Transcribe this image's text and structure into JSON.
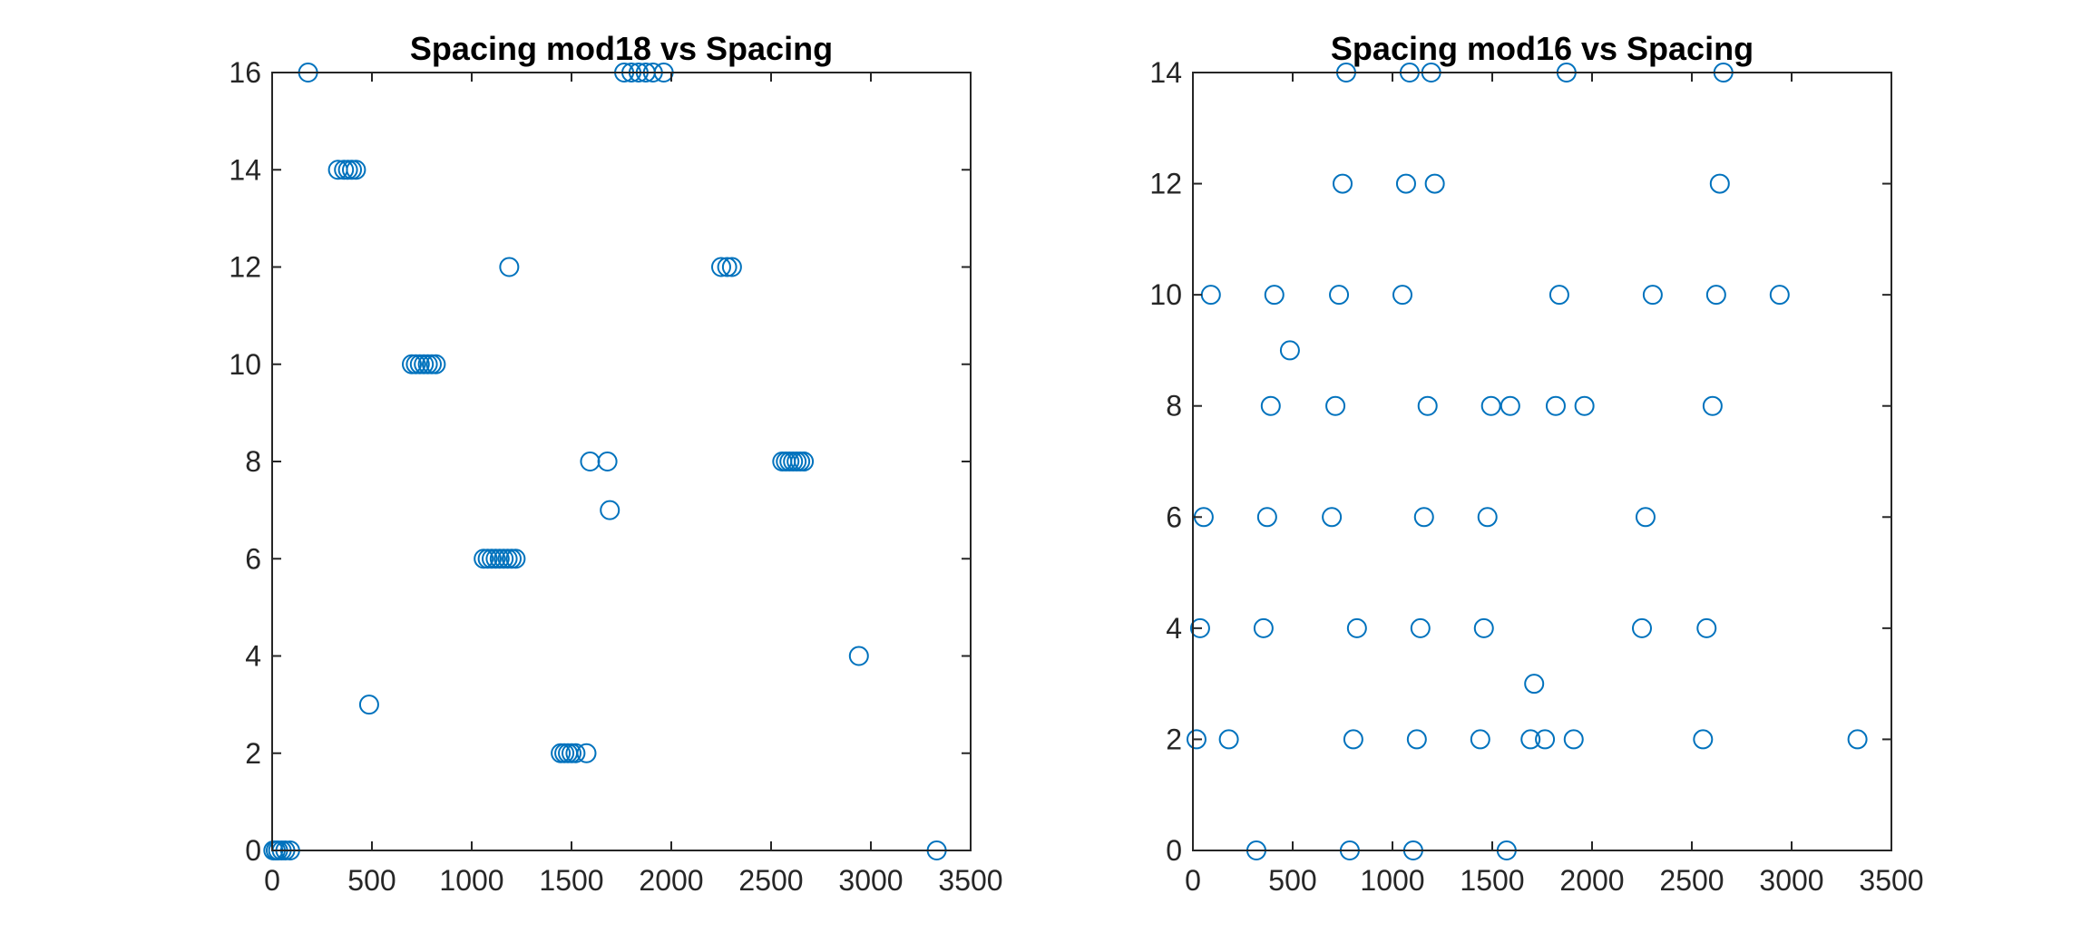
{
  "colors": {
    "marker": "#0072BD",
    "axis": "#262626",
    "title": "#000000",
    "background": "#ffffff"
  },
  "chart_data": [
    {
      "type": "scatter",
      "title": "Spacing mod18 vs Spacing",
      "xlabel": "",
      "ylabel": "",
      "xlim": [
        0,
        3500
      ],
      "ylim": [
        0,
        16
      ],
      "xticks": [
        0,
        500,
        1000,
        1500,
        2000,
        2500,
        3000,
        3500
      ],
      "yticks": [
        0,
        2,
        4,
        6,
        8,
        10,
        12,
        14,
        16
      ],
      "grid": false,
      "marker": "circle",
      "x": [
        6,
        18,
        30,
        48,
        66,
        90,
        180,
        330,
        360,
        380,
        400,
        420,
        486,
        700,
        720,
        740,
        760,
        780,
        800,
        820,
        1060,
        1080,
        1100,
        1120,
        1140,
        1160,
        1180,
        1200,
        1220,
        1188,
        1446,
        1464,
        1482,
        1500,
        1520,
        1575,
        1593,
        1680,
        1692,
        1764,
        1800,
        1836,
        1872,
        1908,
        1962,
        2250,
        2280,
        2304,
        2556,
        2574,
        2592,
        2610,
        2628,
        2646,
        2664,
        2940,
        3330
      ],
      "y": [
        0,
        0,
        0,
        0,
        0,
        0,
        16,
        14,
        14,
        14,
        14,
        14,
        3,
        10,
        10,
        10,
        10,
        10,
        10,
        10,
        6,
        6,
        6,
        6,
        6,
        6,
        6,
        6,
        6,
        12,
        2,
        2,
        2,
        2,
        2,
        2,
        8,
        8,
        7,
        16,
        16,
        16,
        16,
        16,
        16,
        12,
        12,
        12,
        8,
        8,
        8,
        8,
        8,
        8,
        8,
        4,
        0
      ]
    },
    {
      "type": "scatter",
      "title": "Spacing mod16 vs Spacing",
      "xlabel": "",
      "ylabel": "",
      "xlim": [
        0,
        3500
      ],
      "ylim": [
        0,
        14
      ],
      "xticks": [
        0,
        500,
        1000,
        1500,
        2000,
        2500,
        3000,
        3500
      ],
      "yticks": [
        0,
        2,
        4,
        6,
        8,
        10,
        12,
        14
      ],
      "grid": false,
      "marker": "circle",
      "x": [
        18,
        36,
        54,
        90,
        180,
        318,
        354,
        372,
        390,
        408,
        486,
        696,
        714,
        732,
        750,
        768,
        786,
        804,
        822,
        1050,
        1068,
        1086,
        1104,
        1122,
        1140,
        1158,
        1176,
        1194,
        1212,
        1440,
        1458,
        1476,
        1494,
        1572,
        1590,
        1692,
        1710,
        1764,
        1818,
        1836,
        1872,
        1908,
        1962,
        2250,
        2268,
        2304,
        2556,
        2574,
        2604,
        2622,
        2640,
        2658,
        2940,
        3330
      ],
      "y": [
        2,
        4,
        6,
        10,
        2,
        0,
        4,
        6,
        8,
        10,
        9,
        6,
        8,
        10,
        12,
        14,
        0,
        2,
        4,
        10,
        12,
        14,
        0,
        2,
        4,
        6,
        8,
        14,
        12,
        2,
        4,
        6,
        8,
        0,
        8,
        2,
        3,
        2,
        8,
        10,
        14,
        2,
        8,
        4,
        6,
        10,
        2,
        4,
        8,
        10,
        12,
        14,
        10,
        2
      ]
    }
  ]
}
